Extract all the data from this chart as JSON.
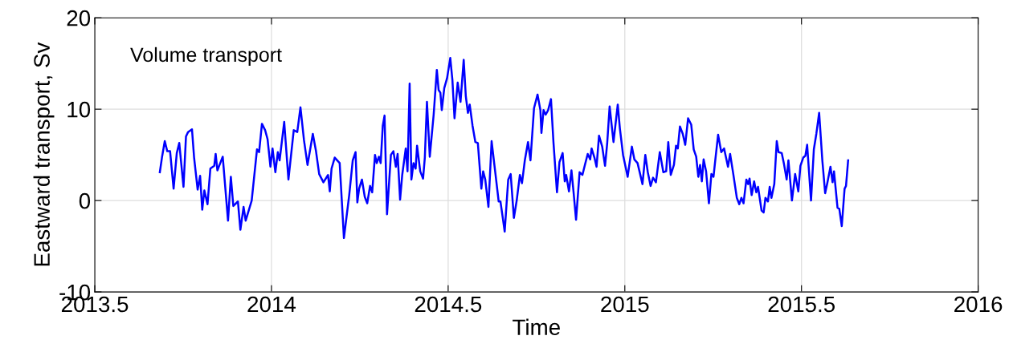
{
  "chart_data": {
    "type": "line",
    "xlabel": "Time",
    "ylabel": "Eastward transport, Sv",
    "annotations": [
      "Volume transport"
    ],
    "xlim": [
      2013.5,
      2016
    ],
    "xticks": [
      2013.5,
      2014,
      2014.5,
      2015,
      2015.5,
      2016
    ],
    "ylim": [
      -10,
      20
    ],
    "yticks": [
      -10,
      0,
      10,
      20
    ],
    "grid": true,
    "marker": "none",
    "line_style": "solid",
    "series": [
      {
        "color": "#0000ff",
        "x": [
          2013.684,
          2013.69,
          2013.698,
          2013.705,
          2013.713,
          2013.723,
          2013.732,
          2013.739,
          2013.751,
          2013.758,
          2013.764,
          2013.775,
          2013.781,
          2013.791,
          2013.798,
          2013.804,
          2013.81,
          2013.819,
          2013.827,
          2013.838,
          2013.842,
          2013.847,
          2013.855,
          2013.862,
          2013.877,
          2013.885,
          2013.892,
          2013.905,
          2013.912,
          2013.921,
          2013.927,
          2013.944,
          2013.959,
          2013.965,
          2013.973,
          2013.982,
          2013.989,
          2013.997,
          2014.003,
          2014.011,
          2014.018,
          2014.023,
          2014.036,
          2014.048,
          2014.063,
          2014.073,
          2014.082,
          2014.092,
          2014.102,
          2014.117,
          2014.126,
          2014.135,
          2014.147,
          2014.16,
          2014.165,
          2014.17,
          2014.179,
          2014.193,
          2014.205,
          2014.22,
          2014.23,
          2014.238,
          2014.243,
          2014.248,
          2014.256,
          2014.264,
          2014.271,
          2014.279,
          2014.285,
          2014.293,
          2014.298,
          2014.304,
          2014.309,
          2014.315,
          2014.32,
          2014.327,
          2014.338,
          2014.345,
          2014.352,
          2014.357,
          2014.364,
          2014.37,
          2014.38,
          2014.385,
          2014.391,
          2014.396,
          2014.402,
          2014.408,
          2014.412,
          2014.421,
          2014.429,
          2014.434,
          2014.44,
          2014.448,
          2014.459,
          2014.468,
          2014.473,
          2014.478,
          2014.482,
          2014.489,
          2014.497,
          2014.506,
          2014.512,
          2014.518,
          2014.527,
          2014.535,
          2014.544,
          2014.55,
          2014.556,
          2014.561,
          2014.569,
          2014.577,
          2014.584,
          2014.594,
          2014.599,
          2014.605,
          2014.614,
          2014.623,
          2014.633,
          2014.643,
          2014.648,
          2014.655,
          2014.66,
          2014.67,
          2014.677,
          2014.686,
          2014.694,
          2014.703,
          2014.709,
          2014.717,
          2014.726,
          2014.733,
          2014.743,
          2014.753,
          2014.761,
          2014.764,
          2014.77,
          2014.776,
          2014.783,
          2014.791,
          2014.798,
          2014.808,
          2014.815,
          2014.824,
          2014.83,
          2014.834,
          2014.842,
          2014.849,
          2014.855,
          2014.862,
          2014.872,
          2014.88,
          2014.887,
          2014.895,
          2014.902,
          2014.906,
          2014.914,
          2014.92,
          2014.927,
          2014.936,
          2014.944,
          2014.95,
          2014.957,
          2014.968,
          2014.98,
          2014.986,
          2014.995,
          2015.008,
          2015.02,
          2015.027,
          2015.036,
          2015.05,
          2015.058,
          2015.065,
          2015.073,
          2015.08,
          2015.088,
          2015.099,
          2015.109,
          2015.117,
          2015.123,
          2015.13,
          2015.139,
          2015.145,
          2015.15,
          2015.156,
          2015.164,
          2015.171,
          2015.179,
          2015.188,
          2015.195,
          2015.202,
          2015.208,
          2015.213,
          2015.218,
          2015.223,
          2015.23,
          2015.238,
          2015.245,
          2015.251,
          2015.256,
          2015.264,
          2015.273,
          2015.281,
          2015.292,
          2015.298,
          2015.307,
          2015.317,
          2015.324,
          2015.33,
          2015.336,
          2015.344,
          2015.349,
          2015.353,
          2015.359,
          2015.366,
          2015.372,
          2015.377,
          2015.387,
          2015.393,
          2015.398,
          2015.405,
          2015.41,
          2015.415,
          2015.423,
          2015.43,
          2015.435,
          2015.444,
          2015.45,
          2015.458,
          2015.463,
          2015.473,
          2015.482,
          2015.491,
          2015.497,
          2015.505,
          2015.511,
          2015.516,
          2015.527,
          2015.535,
          2015.542,
          2015.55,
          2015.559,
          2015.567,
          2015.573,
          2015.582,
          2015.588,
          2015.592,
          2015.602,
          2015.607,
          2015.614,
          2015.622,
          2015.626,
          2015.632
        ],
        "values": [
          3.1,
          4.7,
          6.5,
          5.4,
          5.4,
          1.3,
          5.2,
          6.3,
          1.5,
          7.0,
          7.5,
          7.8,
          4.7,
          1.2,
          2.7,
          -1.0,
          1.1,
          -0.4,
          3.5,
          3.8,
          5.1,
          3.3,
          4.1,
          4.8,
          -2.2,
          2.6,
          -0.6,
          -0.1,
          -3.2,
          -0.7,
          -2.2,
          0.0,
          5.6,
          5.3,
          8.4,
          7.7,
          6.7,
          3.7,
          5.7,
          3.1,
          5.3,
          4.4,
          8.6,
          2.3,
          7.7,
          7.5,
          10.2,
          6.6,
          3.9,
          7.3,
          5.4,
          2.9,
          2.0,
          2.8,
          1.0,
          3.5,
          4.7,
          4.1,
          -4.1,
          0.6,
          4.4,
          5.3,
          -0.2,
          1.3,
          2.3,
          0.4,
          -0.3,
          1.6,
          0.9,
          5.0,
          4.1,
          4.8,
          4.1,
          8.2,
          9.3,
          -1.5,
          5.0,
          5.4,
          3.7,
          5.1,
          0.1,
          2.8,
          5.7,
          3.2,
          12.8,
          2.3,
          4.1,
          3.5,
          6.0,
          3.2,
          2.4,
          4.7,
          10.8,
          4.8,
          9.4,
          14.3,
          12.1,
          11.8,
          9.9,
          12.3,
          13.4,
          15.6,
          13.2,
          9.0,
          12.9,
          10.8,
          15.4,
          11.4,
          9.6,
          10.5,
          8.2,
          6.4,
          6.3,
          1.3,
          3.2,
          2.3,
          -0.7,
          6.5,
          3.2,
          -0.1,
          -0.1,
          -2.0,
          -3.4,
          2.3,
          2.9,
          -1.9,
          0.0,
          2.8,
          1.9,
          4.4,
          6.4,
          4.4,
          10.1,
          11.6,
          9.9,
          7.4,
          9.9,
          9.4,
          9.9,
          11.1,
          6.4,
          0.9,
          4.2,
          5.2,
          2.1,
          2.8,
          1.0,
          3.3,
          0.9,
          -2.1,
          3.1,
          2.8,
          3.9,
          5.1,
          4.5,
          5.7,
          4.7,
          3.7,
          7.1,
          5.9,
          3.8,
          6.2,
          10.3,
          6.4,
          10.5,
          7.9,
          5.0,
          2.6,
          5.9,
          4.5,
          4.1,
          1.8,
          5.0,
          3.1,
          1.6,
          2.5,
          2.0,
          5.3,
          3.1,
          3.2,
          6.4,
          2.8,
          3.9,
          6.0,
          5.7,
          8.1,
          7.3,
          6.1,
          9.0,
          8.3,
          5.6,
          4.8,
          2.6,
          3.9,
          2.1,
          4.5,
          3.2,
          -0.3,
          2.9,
          2.6,
          4.4,
          7.2,
          5.3,
          5.7,
          3.7,
          5.1,
          2.9,
          0.3,
          -0.4,
          0.3,
          -0.3,
          2.3,
          1.8,
          2.4,
          0.6,
          2.1,
          0.9,
          1.5,
          -1.1,
          -1.3,
          0.3,
          -0.1,
          1.5,
          0.3,
          1.8,
          6.5,
          5.3,
          5.2,
          4.1,
          2.3,
          4.4,
          0.0,
          2.9,
          1.0,
          3.8,
          4.7,
          4.9,
          6.1,
          0.0,
          5.6,
          7.3,
          9.6,
          4.4,
          0.8,
          1.9,
          3.7,
          2.0,
          3.2,
          -0.8,
          -0.9,
          -2.8,
          1.3,
          1.6,
          4.4
        ]
      }
    ]
  }
}
